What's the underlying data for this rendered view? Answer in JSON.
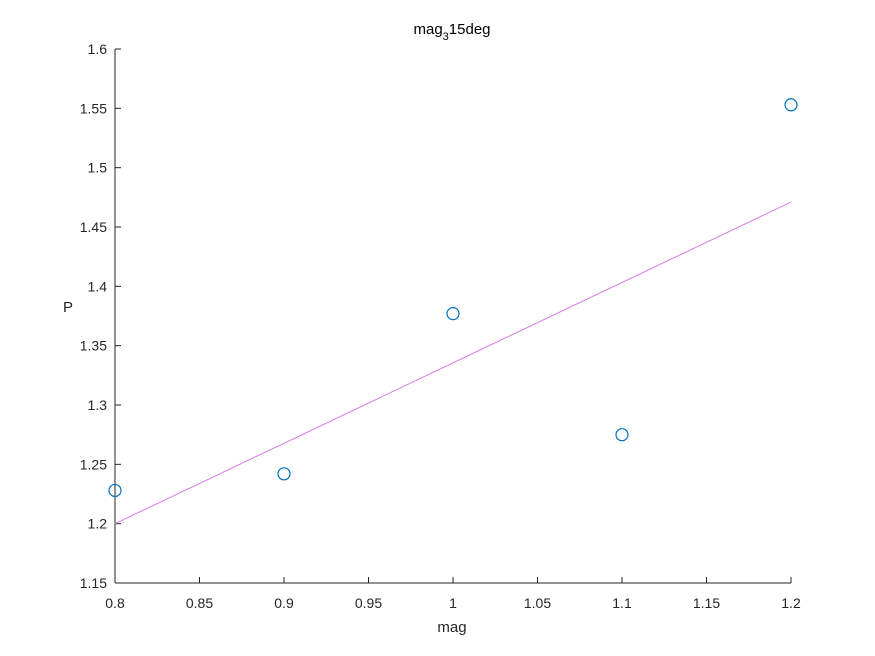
{
  "chart_data": {
    "type": "scatter",
    "title": {
      "base": "mag",
      "subscript": "3",
      "rest": "15deg"
    },
    "xlabel": "mag",
    "ylabel": "P",
    "xlim": [
      0.8,
      1.2
    ],
    "ylim": [
      1.15,
      1.6
    ],
    "xticks": [
      0.8,
      0.85,
      0.9,
      0.95,
      1.0,
      1.05,
      1.1,
      1.15,
      1.2
    ],
    "xtick_labels": [
      "0.8",
      "0.85",
      "0.9",
      "0.95",
      "1",
      "1.05",
      "1.1",
      "1.15",
      "1.2"
    ],
    "yticks": [
      1.15,
      1.2,
      1.25,
      1.3,
      1.35,
      1.4,
      1.45,
      1.5,
      1.55,
      1.6
    ],
    "ytick_labels": [
      "1.15",
      "1.2",
      "1.25",
      "1.3",
      "1.35",
      "1.4",
      "1.45",
      "1.5",
      "1.55",
      "1.6"
    ],
    "grid": false,
    "series": [
      {
        "kind": "scatter",
        "marker": "open-circle",
        "color": "#0072BD",
        "x": [
          0.8,
          0.9,
          1.0,
          1.1,
          1.2
        ],
        "y": [
          1.228,
          1.242,
          1.377,
          1.275,
          1.553
        ]
      },
      {
        "kind": "line",
        "color": "#D97BE6",
        "x": [
          0.8,
          1.2
        ],
        "y": [
          1.2,
          1.471
        ]
      }
    ]
  }
}
